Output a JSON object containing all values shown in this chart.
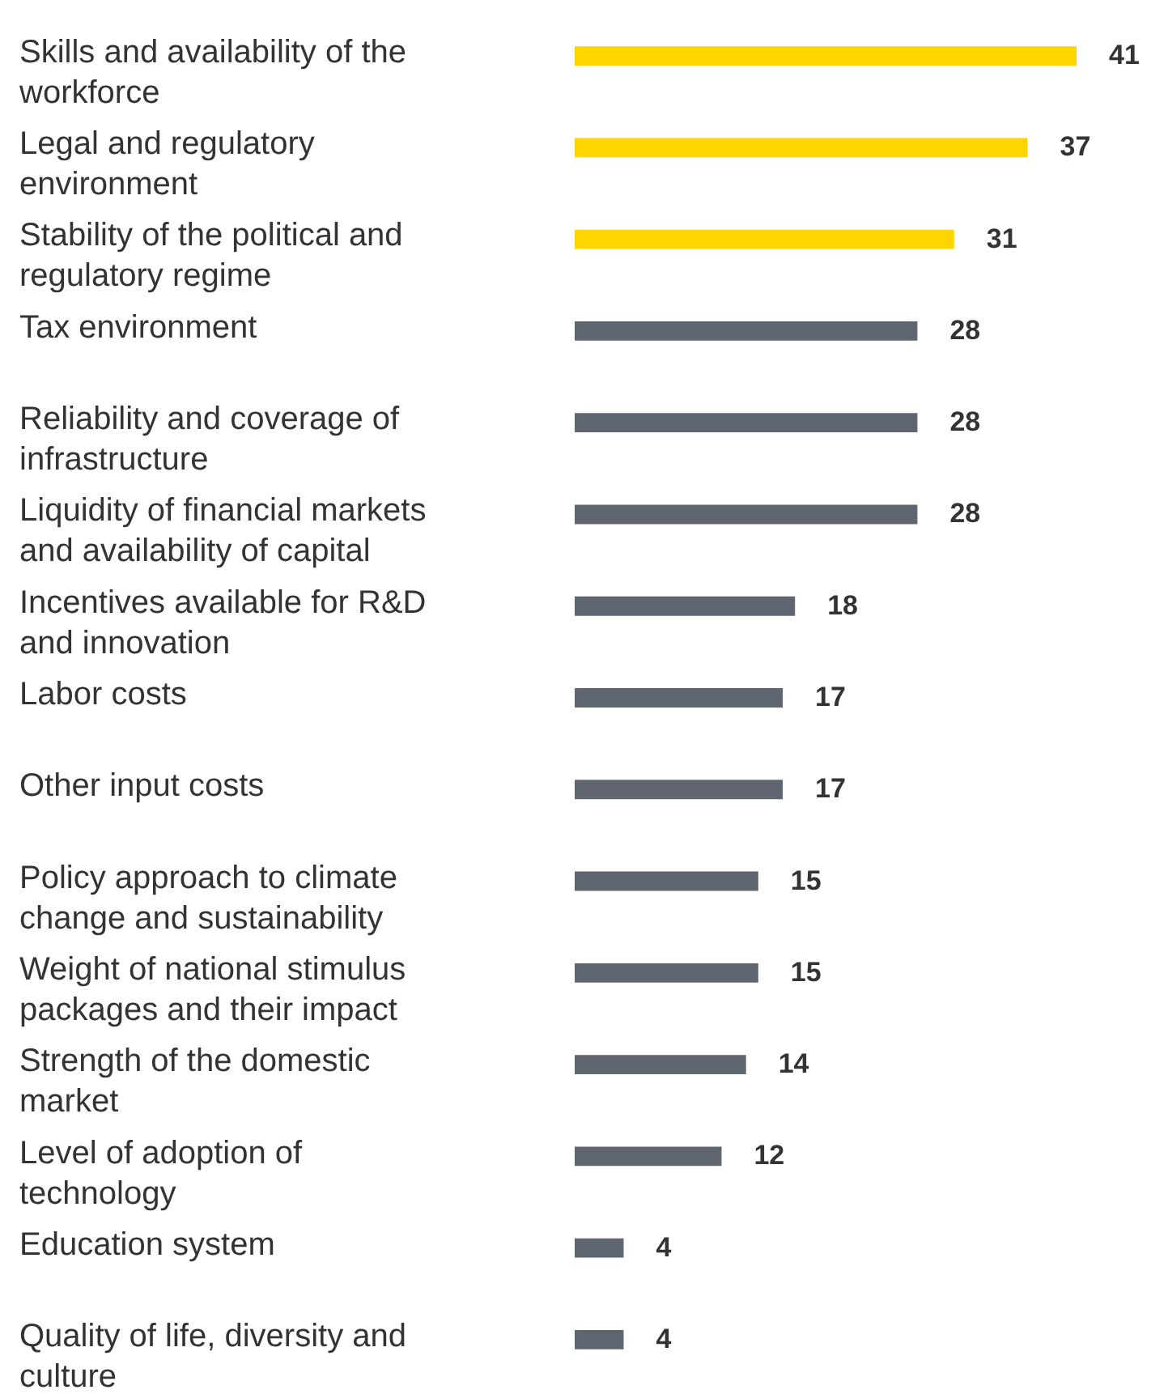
{
  "chart_data": {
    "type": "bar",
    "orientation": "horizontal",
    "data_labels": true,
    "categories": [
      "Skills and availability of the workforce",
      "Legal and regulatory environment",
      "Stability of the political and regulatory regime",
      "Tax environment",
      "Reliability and coverage of infrastructure",
      "Liquidity of financial markets and availability of capital",
      "Incentives available for R&D and innovation",
      "Labor costs",
      "Other input costs",
      "Policy approach to climate change and sustainability",
      "Weight of national stimulus packages and their impact",
      "Strength of the domestic market",
      "Level of adoption of technology",
      "Education system",
      "Quality of life, diversity and culture"
    ],
    "values": [
      41,
      37,
      31,
      28,
      28,
      28,
      18,
      17,
      17,
      15,
      15,
      14,
      12,
      4,
      4
    ],
    "colors": [
      "#ffd500",
      "#ffd500",
      "#ffd500",
      "#5f6670",
      "#5f6670",
      "#5f6670",
      "#5f6670",
      "#5f6670",
      "#5f6670",
      "#5f6670",
      "#5f6670",
      "#5f6670",
      "#5f6670",
      "#5f6670",
      "#5f6670"
    ]
  }
}
